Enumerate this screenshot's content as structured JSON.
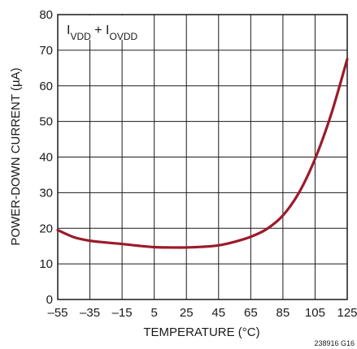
{
  "chart_data": {
    "type": "line",
    "xlabel": "TEMPERATURE (°C)",
    "ylabel": "POWER-DOWN CURRENT (µA)",
    "xlim": [
      -55,
      125
    ],
    "ylim": [
      0,
      80
    ],
    "x_ticks": [
      "–55",
      "–35",
      "–15",
      "5",
      "25",
      "45",
      "65",
      "85",
      "105",
      "125"
    ],
    "y_ticks": [
      "0",
      "10",
      "20",
      "30",
      "40",
      "50",
      "60",
      "70",
      "80"
    ],
    "grid": true,
    "annotation": {
      "part1_main": "I",
      "part1_sub": "VDD",
      "plus": " + ",
      "part2_main": "I",
      "part2_sub": "OVDD"
    },
    "figure_id": "238916 G16",
    "series": [
      {
        "color": "#9b1b2a",
        "x": [
          -55,
          -45,
          -35,
          -25,
          -15,
          -5,
          5,
          15,
          25,
          35,
          45,
          55,
          65,
          75,
          85,
          95,
          105,
          115,
          125
        ],
        "y": [
          19.5,
          17.5,
          16.5,
          16.0,
          15.6,
          15.1,
          14.7,
          14.6,
          14.6,
          14.8,
          15.2,
          16.2,
          17.6,
          19.8,
          23.6,
          30.0,
          39.5,
          52.0,
          67.5
        ]
      }
    ]
  }
}
